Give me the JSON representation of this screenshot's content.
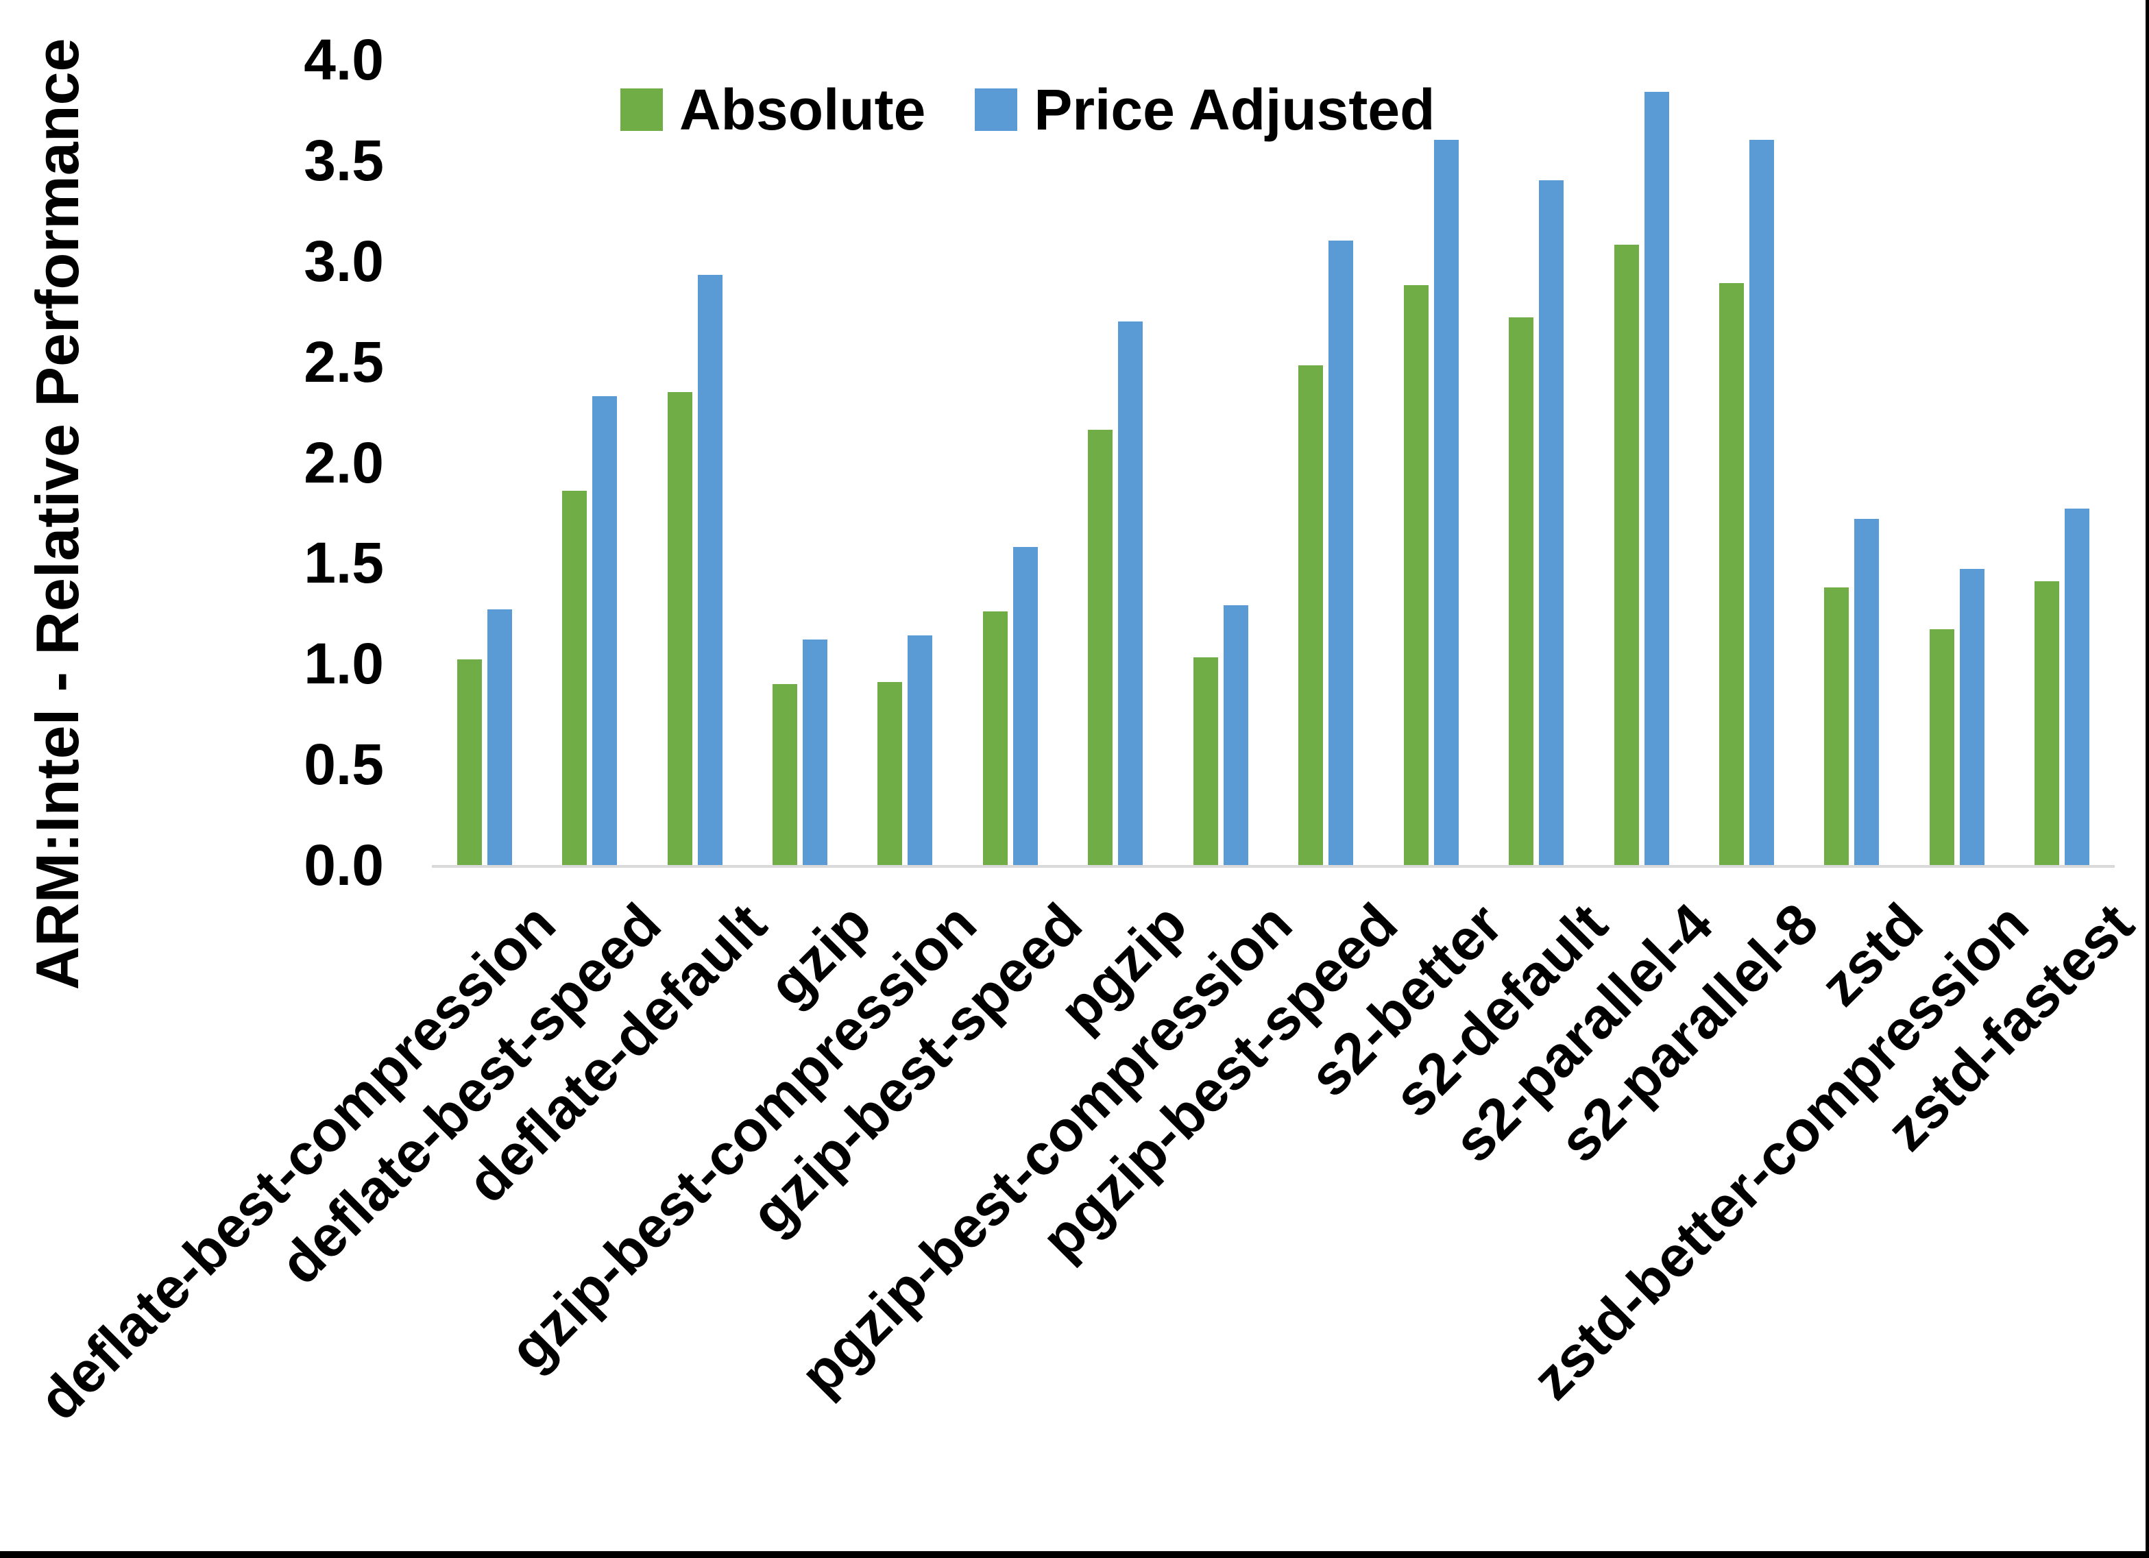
{
  "chart_data": {
    "type": "bar",
    "title": "",
    "ylabel": "ARM:Intel - Relative Performance",
    "xlabel": "",
    "ylim": [
      0.0,
      4.0
    ],
    "y_tick_step": 0.5,
    "y_ticks": [
      "4.0",
      "3.5",
      "3.0",
      "2.5",
      "2.0",
      "1.5",
      "1.0",
      "0.5",
      "0.0"
    ],
    "grid": false,
    "legend_position": "top-center",
    "axis_line_color": "#D9D9D9",
    "text_color": "#000000",
    "categories": [
      "deflate-best-compression",
      "deflate-best-speed",
      "deflate-default",
      "gzip",
      "gzip-best-compression",
      "gzip-best-speed",
      "pgzip",
      "pgzip-best-compression",
      "pgzip-best-speed",
      "s2-better",
      "s2-default",
      "s2-parallel-4",
      "s2-parallel-8",
      "zstd",
      "zstd-better-compression",
      "zstd-fastest"
    ],
    "series": [
      {
        "name": "Absolute",
        "color": "#70AD47",
        "values": [
          1.02,
          1.86,
          2.35,
          0.9,
          0.91,
          1.26,
          2.16,
          1.03,
          2.48,
          2.88,
          2.72,
          3.08,
          2.89,
          1.38,
          1.17,
          1.41
        ]
      },
      {
        "name": "Price Adjusted",
        "color": "#5B9BD5",
        "values": [
          1.27,
          2.33,
          2.93,
          1.12,
          1.14,
          1.58,
          2.7,
          1.29,
          3.1,
          3.6,
          3.4,
          3.84,
          3.6,
          1.72,
          1.47,
          1.77
        ]
      }
    ]
  }
}
